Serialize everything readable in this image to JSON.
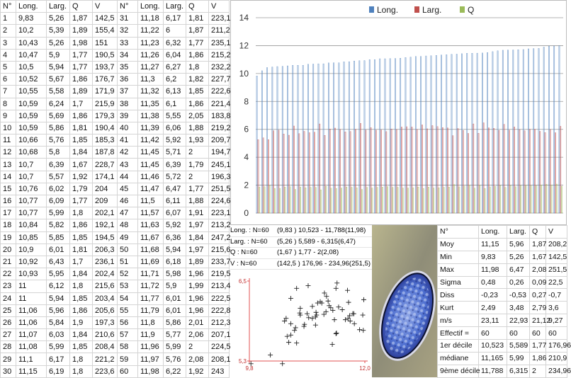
{
  "table": {
    "header": [
      "N°",
      "Long.",
      "Larg.",
      "Q",
      "V",
      "N°",
      "Long.",
      "Larg.",
      "Q",
      "V"
    ],
    "rows": [
      [
        "1",
        "9,83",
        "5,26",
        "1,87",
        "142,5",
        "31",
        "11,18",
        "6,17",
        "1,81",
        "223,1"
      ],
      [
        "2",
        "10,2",
        "5,39",
        "1,89",
        "155,4",
        "32",
        "11,22",
        "6",
        "1,87",
        "211,2"
      ],
      [
        "3",
        "10,43",
        "5,26",
        "1,98",
        "151",
        "33",
        "11,23",
        "6,32",
        "1,77",
        "235,1"
      ],
      [
        "4",
        "10,47",
        "5,9",
        "1,77",
        "190,5",
        "34",
        "11,26",
        "6,04",
        "1,86",
        "215,2"
      ],
      [
        "5",
        "10,5",
        "5,94",
        "1,77",
        "193,7",
        "35",
        "11,27",
        "6,27",
        "1,8",
        "232,2"
      ],
      [
        "6",
        "10,52",
        "5,67",
        "1,86",
        "176,7",
        "36",
        "11,3",
        "6,2",
        "1,82",
        "227,7"
      ],
      [
        "7",
        "10,55",
        "5,58",
        "1,89",
        "171,9",
        "37",
        "11,32",
        "6,13",
        "1,85",
        "222,6"
      ],
      [
        "8",
        "10,59",
        "6,24",
        "1,7",
        "215,9",
        "38",
        "11,35",
        "6,1",
        "1,86",
        "221,4"
      ],
      [
        "9",
        "10,59",
        "5,69",
        "1,86",
        "179,3",
        "39",
        "11,38",
        "5,55",
        "2,05",
        "183,8"
      ],
      [
        "10",
        "10,59",
        "5,86",
        "1,81",
        "190,4",
        "40",
        "11,39",
        "6,06",
        "1,88",
        "219,2"
      ],
      [
        "11",
        "10,66",
        "5,76",
        "1,85",
        "185,3",
        "41",
        "11,42",
        "5,92",
        "1,93",
        "209,7"
      ],
      [
        "12",
        "10,68",
        "5,8",
        "1,84",
        "187,8",
        "42",
        "11,45",
        "5,71",
        "2",
        "194,7"
      ],
      [
        "13",
        "10,7",
        "6,39",
        "1,67",
        "228,7",
        "43",
        "11,45",
        "6,39",
        "1,79",
        "245,1"
      ],
      [
        "14",
        "10,7",
        "5,57",
        "1,92",
        "174,1",
        "44",
        "11,46",
        "5,72",
        "2",
        "196,3"
      ],
      [
        "15",
        "10,76",
        "6,02",
        "1,79",
        "204",
        "45",
        "11,47",
        "6,47",
        "1,77",
        "251,5"
      ],
      [
        "16",
        "10,77",
        "6,09",
        "1,77",
        "209",
        "46",
        "11,5",
        "6,11",
        "1,88",
        "224,6"
      ],
      [
        "17",
        "10,77",
        "5,99",
        "1,8",
        "202,1",
        "47",
        "11,57",
        "6,07",
        "1,91",
        "223,1"
      ],
      [
        "18",
        "10,84",
        "5,82",
        "1,86",
        "192,1",
        "48",
        "11,63",
        "5,92",
        "1,97",
        "213,2"
      ],
      [
        "19",
        "10,85",
        "5,85",
        "1,85",
        "194,5",
        "49",
        "11,67",
        "6,36",
        "1,84",
        "247,2"
      ],
      [
        "20",
        "10,9",
        "6,01",
        "1,81",
        "206,3",
        "50",
        "11,68",
        "5,94",
        "1,97",
        "215,6"
      ],
      [
        "21",
        "10,92",
        "6,43",
        "1,7",
        "236,1",
        "51",
        "11,69",
        "6,18",
        "1,89",
        "233,7"
      ],
      [
        "22",
        "10,93",
        "5,95",
        "1,84",
        "202,4",
        "52",
        "11,71",
        "5,98",
        "1,96",
        "219,5"
      ],
      [
        "23",
        "11",
        "6,12",
        "1,8",
        "215,6",
        "53",
        "11,72",
        "5,9",
        "1,99",
        "213,4"
      ],
      [
        "24",
        "11",
        "5,94",
        "1,85",
        "203,4",
        "54",
        "11,77",
        "6,01",
        "1,96",
        "222,5"
      ],
      [
        "25",
        "11,06",
        "5,96",
        "1,86",
        "205,6",
        "55",
        "11,79",
        "6,01",
        "1,96",
        "222,8"
      ],
      [
        "26",
        "11,06",
        "5,84",
        "1,9",
        "197,3",
        "56",
        "11,8",
        "5,86",
        "2,01",
        "212,3"
      ],
      [
        "27",
        "11,07",
        "6,03",
        "1,84",
        "210,6",
        "57",
        "11,9",
        "5,77",
        "2,06",
        "207,1"
      ],
      [
        "28",
        "11,08",
        "5,99",
        "1,85",
        "208,4",
        "58",
        "11,96",
        "5,99",
        "2",
        "224,5"
      ],
      [
        "29",
        "11,1",
        "6,17",
        "1,8",
        "221,2",
        "59",
        "11,97",
        "5,76",
        "2,08",
        "208,1"
      ],
      [
        "30",
        "11,15",
        "6,19",
        "1,8",
        "223,6",
        "60",
        "11,98",
        "6,22",
        "1,92",
        "243"
      ]
    ]
  },
  "chart_data": [
    {
      "type": "bar",
      "ylim": [
        0,
        14
      ],
      "yticks": [
        0,
        2,
        4,
        6,
        8,
        10,
        12,
        14
      ],
      "grid": true,
      "legend": "top",
      "series": [
        {
          "name": "Long.",
          "color": "#4f81bd",
          "values": [
            9.83,
            10.2,
            10.43,
            10.47,
            10.5,
            10.52,
            10.55,
            10.59,
            10.59,
            10.59,
            10.66,
            10.68,
            10.7,
            10.7,
            10.76,
            10.77,
            10.77,
            10.84,
            10.85,
            10.9,
            10.92,
            10.93,
            11,
            11,
            11.06,
            11.06,
            11.07,
            11.08,
            11.1,
            11.15,
            11.18,
            11.22,
            11.23,
            11.26,
            11.27,
            11.3,
            11.32,
            11.35,
            11.38,
            11.39,
            11.42,
            11.45,
            11.45,
            11.46,
            11.47,
            11.5,
            11.57,
            11.63,
            11.67,
            11.68,
            11.69,
            11.71,
            11.72,
            11.77,
            11.79,
            11.8,
            11.9,
            11.96,
            11.97,
            11.98
          ]
        },
        {
          "name": "Larg.",
          "color": "#c0504d",
          "values": [
            5.26,
            5.39,
            5.26,
            5.9,
            5.94,
            5.67,
            5.58,
            6.24,
            5.69,
            5.86,
            5.76,
            5.8,
            6.39,
            5.57,
            6.02,
            6.09,
            5.99,
            5.82,
            5.85,
            6.01,
            6.43,
            5.95,
            6.12,
            5.94,
            5.96,
            5.84,
            6.03,
            5.99,
            6.17,
            6.19,
            6.17,
            6,
            6.32,
            6.04,
            6.27,
            6.2,
            6.13,
            6.1,
            5.55,
            6.06,
            5.92,
            5.71,
            6.39,
            5.72,
            6.47,
            6.11,
            6.07,
            5.92,
            6.36,
            5.94,
            6.18,
            5.98,
            5.9,
            6.01,
            6.01,
            5.86,
            5.77,
            5.99,
            5.76,
            6.22
          ]
        },
        {
          "name": "Q",
          "color": "#9bbb59",
          "values": [
            1.87,
            1.89,
            1.98,
            1.77,
            1.77,
            1.86,
            1.89,
            1.7,
            1.86,
            1.81,
            1.85,
            1.84,
            1.67,
            1.92,
            1.79,
            1.77,
            1.8,
            1.86,
            1.85,
            1.81,
            1.7,
            1.84,
            1.8,
            1.85,
            1.86,
            1.9,
            1.84,
            1.85,
            1.8,
            1.8,
            1.81,
            1.87,
            1.77,
            1.86,
            1.8,
            1.82,
            1.85,
            1.86,
            2.05,
            1.88,
            1.93,
            2,
            1.79,
            2,
            1.77,
            1.88,
            1.91,
            1.97,
            1.84,
            1.97,
            1.89,
            1.96,
            1.99,
            1.96,
            1.96,
            2.01,
            2.06,
            2,
            2.08,
            1.92
          ]
        }
      ]
    },
    {
      "type": "scatter",
      "color": "#222222",
      "xlim": [
        9.8,
        12.0
      ],
      "xticks": [
        {
          "value": 9.8,
          "label": "9,8"
        },
        {
          "value": 12.0,
          "label": "12,0"
        }
      ],
      "ylim": [
        5.3,
        6.5
      ],
      "yticks": [
        {
          "value": 5.3,
          "label": "5,3"
        },
        {
          "value": 6.5,
          "label": "6,5"
        }
      ],
      "x": [
        9.83,
        10.2,
        10.43,
        10.47,
        10.5,
        10.52,
        10.55,
        10.59,
        10.59,
        10.59,
        10.66,
        10.68,
        10.7,
        10.7,
        10.76,
        10.77,
        10.77,
        10.84,
        10.85,
        10.9,
        10.92,
        10.93,
        11,
        11,
        11.06,
        11.06,
        11.07,
        11.08,
        11.1,
        11.15,
        11.18,
        11.22,
        11.23,
        11.26,
        11.27,
        11.3,
        11.32,
        11.35,
        11.38,
        11.39,
        11.42,
        11.45,
        11.45,
        11.46,
        11.47,
        11.5,
        11.57,
        11.63,
        11.67,
        11.68,
        11.69,
        11.71,
        11.72,
        11.77,
        11.79,
        11.8,
        11.9,
        11.96,
        11.97,
        11.98
      ],
      "values": [
        5.26,
        5.39,
        5.26,
        5.9,
        5.94,
        5.67,
        5.58,
        6.24,
        5.69,
        5.86,
        5.76,
        5.8,
        6.39,
        5.57,
        6.02,
        6.09,
        5.99,
        5.82,
        5.85,
        6.01,
        6.43,
        5.95,
        6.12,
        5.94,
        5.96,
        5.84,
        6.03,
        5.99,
        6.17,
        6.19,
        6.17,
        6,
        6.32,
        6.04,
        6.27,
        6.2,
        6.13,
        6.1,
        5.55,
        6.06,
        5.92,
        5.71,
        6.39,
        5.72,
        6.47,
        6.11,
        6.07,
        5.92,
        6.36,
        5.94,
        6.18,
        5.98,
        5.9,
        6.01,
        6.01,
        5.86,
        5.77,
        5.99,
        5.76,
        6.22
      ]
    }
  ],
  "summary": [
    {
      "label": "Long. : N=60",
      "range": "(9,83 ) 10,523 - 11,788(11,98)"
    },
    {
      "label": "Larg. : N=60",
      "range": "(5,26 ) 5,589 - 6,315(6,47)"
    },
    {
      "label": "Q : N=60",
      "range": "(1,67 ) 1,77 - 2(2,08)"
    },
    {
      "label": "V : N=60",
      "range": "(142,5 ) 176,96 - 234,96(251,5)"
    }
  ],
  "stats": {
    "header": [
      "N°",
      "Long.",
      "Larg.",
      "Q",
      "V"
    ],
    "rows": [
      [
        "Moy",
        "11,15",
        "5,96",
        "1,87",
        "208,2"
      ],
      [
        "Min",
        "9,83",
        "5,26",
        "1,67",
        "142,5"
      ],
      [
        "Max",
        "11,98",
        "6,47",
        "2,08",
        "251,5"
      ],
      [
        "Sigma",
        "0,48",
        "0,26",
        "0,09",
        "22,5"
      ],
      [
        "Diss",
        "-0,23",
        "-0,53",
        "0,27",
        "-0,7"
      ],
      [
        "Kurt",
        "2,49",
        "3,48",
        "2,79",
        "3,6"
      ],
      [
        "m/s",
        "23,11",
        "22,93",
        "21,12",
        "9,27"
      ],
      [
        "Effectif =",
        "60",
        "60",
        "60",
        "60"
      ],
      [
        "1er décile",
        "10,523",
        "5,589",
        "1,77",
        "176,96"
      ],
      [
        "médiane",
        "11,165",
        "5,99",
        "1,86",
        "210,9"
      ],
      [
        "9ème décile",
        "11,788",
        "6,315",
        "2",
        "234,96"
      ]
    ]
  }
}
